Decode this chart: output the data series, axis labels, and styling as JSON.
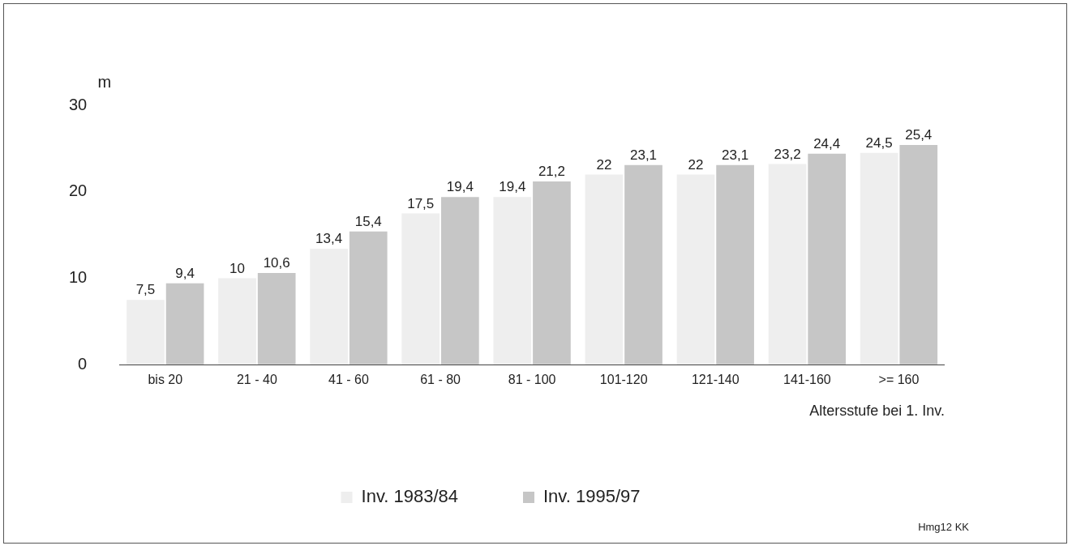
{
  "chart_data": {
    "type": "bar",
    "ylabel": "m",
    "xlabel": "Altersstufe bei 1. Inv.",
    "categories": [
      "bis 20",
      "21 - 40",
      "41 - 60",
      "61 - 80",
      "81 - 100",
      "101-120",
      "121-140",
      "141-160",
      ">= 160"
    ],
    "series": [
      {
        "name": "Inv. 1983/84",
        "color": "#eeeeee",
        "values": [
          7.5,
          10,
          13.4,
          17.5,
          19.4,
          22,
          22,
          23.2,
          24.5
        ],
        "value_labels": [
          "7,5",
          "10",
          "13,4",
          "17,5",
          "19,4",
          "22",
          "22",
          "23,2",
          "24,5"
        ]
      },
      {
        "name": "Inv. 1995/97",
        "color": "#c6c6c6",
        "values": [
          9.4,
          10.6,
          15.4,
          19.4,
          21.2,
          23.1,
          23.1,
          24.4,
          25.4
        ],
        "value_labels": [
          "9,4",
          "10,6",
          "15,4",
          "19,4",
          "21,2",
          "23,1",
          "23,1",
          "24,4",
          "25,4"
        ]
      }
    ],
    "ylim": [
      0,
      30
    ],
    "yticks": [
      0,
      10,
      20,
      30
    ],
    "grid": false,
    "legend": "bottom",
    "annotations": [
      "Hmg12 KK"
    ]
  }
}
